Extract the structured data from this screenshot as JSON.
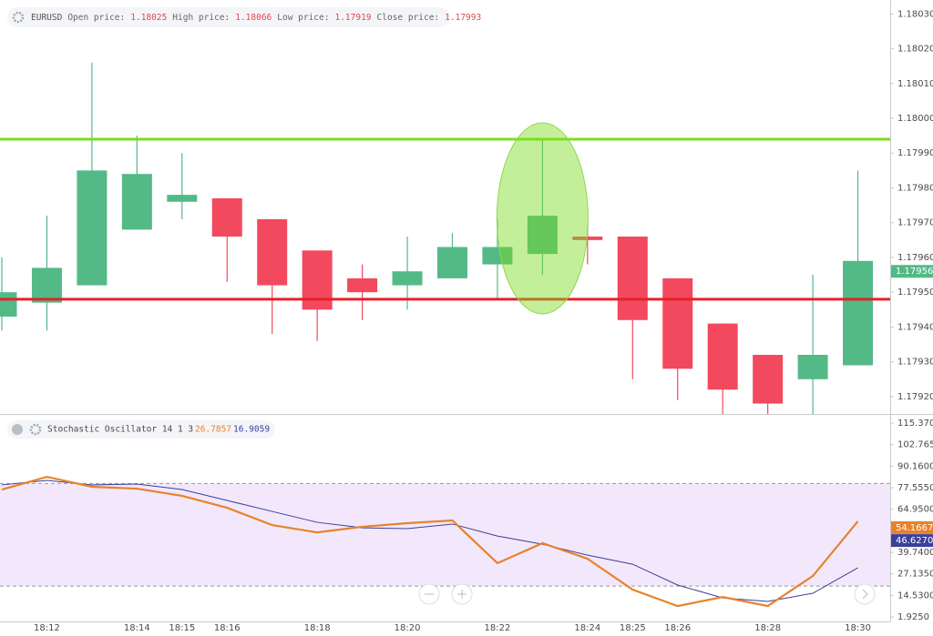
{
  "chart_data": [
    {
      "type": "candlestick",
      "symbol": "EURUSD",
      "ohlc": [
        {
          "label": "Open price:",
          "value": 1.18025
        },
        {
          "label": "High price:",
          "value": 1.18066
        },
        {
          "label": "Low price:",
          "value": 1.17919
        },
        {
          "label": "Close price:",
          "value": 1.17993
        }
      ],
      "categories": [
        null,
        "18:12",
        null,
        "18:14",
        "18:15",
        "18:16",
        null,
        "18:18",
        null,
        "18:20",
        null,
        "18:22",
        null,
        "18:24",
        "18:25",
        "18:26",
        null,
        "18:28",
        null,
        "18:30"
      ],
      "open": [
        1.17943,
        1.17947,
        1.17952,
        1.17968,
        1.17976,
        1.17977,
        1.17971,
        1.17962,
        1.17954,
        1.17952,
        1.17954,
        1.17958,
        1.17961,
        1.17966,
        1.17966,
        1.17954,
        1.17941,
        1.17932,
        1.17925,
        1.17929
      ],
      "high": [
        1.1796,
        1.17972,
        1.18016,
        1.17995,
        1.1799,
        1.17977,
        1.17971,
        1.17962,
        1.17958,
        1.17966,
        1.17967,
        1.17971,
        1.17994,
        1.17969,
        1.17966,
        1.17954,
        1.17941,
        1.17932,
        1.17955,
        1.17985
      ],
      "low": [
        1.17939,
        1.17939,
        1.17952,
        1.17968,
        1.17971,
        1.17953,
        1.17938,
        1.17936,
        1.17942,
        1.17945,
        1.17954,
        1.17948,
        1.17955,
        1.17958,
        1.17925,
        1.17919,
        1.17915,
        1.17915,
        1.17915,
        1.17929
      ],
      "close": [
        1.1795,
        1.17957,
        1.17985,
        1.17984,
        1.17978,
        1.17966,
        1.17952,
        1.17945,
        1.1795,
        1.17956,
        1.17963,
        1.17963,
        1.17972,
        1.17965,
        1.17942,
        1.17928,
        1.17922,
        1.17918,
        1.17932,
        1.17959
      ],
      "up_color": "#53b987",
      "down_color": "#f2495e",
      "hlines": [
        {
          "value": 1.17994,
          "color": "#7ddc1f"
        },
        {
          "value": 1.17948,
          "color": "#e8202a"
        }
      ],
      "highlight_index": 12,
      "last_price": 1.17956,
      "ylim": [
        1.17915,
        1.18034
      ],
      "yticks": [
        {
          "value": 1.1803,
          "label": "1.18030"
        },
        {
          "value": 1.1802,
          "label": "1.18020"
        },
        {
          "value": 1.1801,
          "label": "1.18010"
        },
        {
          "value": 1.18,
          "label": "1.18000"
        },
        {
          "value": 1.1799,
          "label": "1.17990"
        },
        {
          "value": 1.1798,
          "label": "1.17980"
        },
        {
          "value": 1.1797,
          "label": "1.17970"
        },
        {
          "value": 1.1796,
          "label": "1.17960"
        },
        {
          "value": 1.1795,
          "label": "1.17950"
        },
        {
          "value": 1.1794,
          "label": "1.17940"
        },
        {
          "value": 1.1793,
          "label": "1.17930"
        },
        {
          "value": 1.1792,
          "label": "1.17920"
        }
      ]
    },
    {
      "type": "line",
      "title": "Stochastic Oscillator 14 1 3",
      "header_values": [
        26.7857,
        16.9059
      ],
      "series": [
        {
          "color": "#e8822c",
          "values": [
            76.5,
            83.9,
            78.1,
            77.0,
            72.8,
            65.8,
            55.7,
            51.4,
            54.7,
            56.8,
            58.4,
            33.4,
            45.1,
            36.0,
            17.9,
            8.3,
            13.6,
            8.3,
            25.9,
            57.9
          ],
          "last": 54.1667
        },
        {
          "color": "#3a3f9a",
          "values": [
            79.2,
            81.8,
            79.2,
            79.7,
            76.5,
            70.1,
            63.7,
            57.3,
            54.1,
            53.6,
            56.3,
            49.3,
            44.5,
            38.1,
            32.8,
            20.6,
            13.1,
            11.0,
            15.8,
            30.7
          ],
          "last": {
            "value": 46.627,
            "label": "46.6270"
          }
        }
      ],
      "band": [
        20,
        80
      ],
      "band_color": "#f3e8fb",
      "ylim": [
        -0.7,
        119.1
      ],
      "yticks": [
        {
          "value": 115.37,
          "label": "115.3700"
        },
        {
          "value": 102.765,
          "label": "102.7650"
        },
        {
          "value": 90.16,
          "label": "90.1600"
        },
        {
          "value": 77.555,
          "label": "77.5550"
        },
        {
          "value": 64.95,
          "label": "64.9500"
        },
        {
          "value": 39.74,
          "label": "39.7400"
        },
        {
          "value": 27.135,
          "label": "27.1350"
        },
        {
          "value": 14.53,
          "label": "14.5300"
        },
        {
          "value": 1.925,
          "label": "1.9250"
        }
      ]
    }
  ]
}
